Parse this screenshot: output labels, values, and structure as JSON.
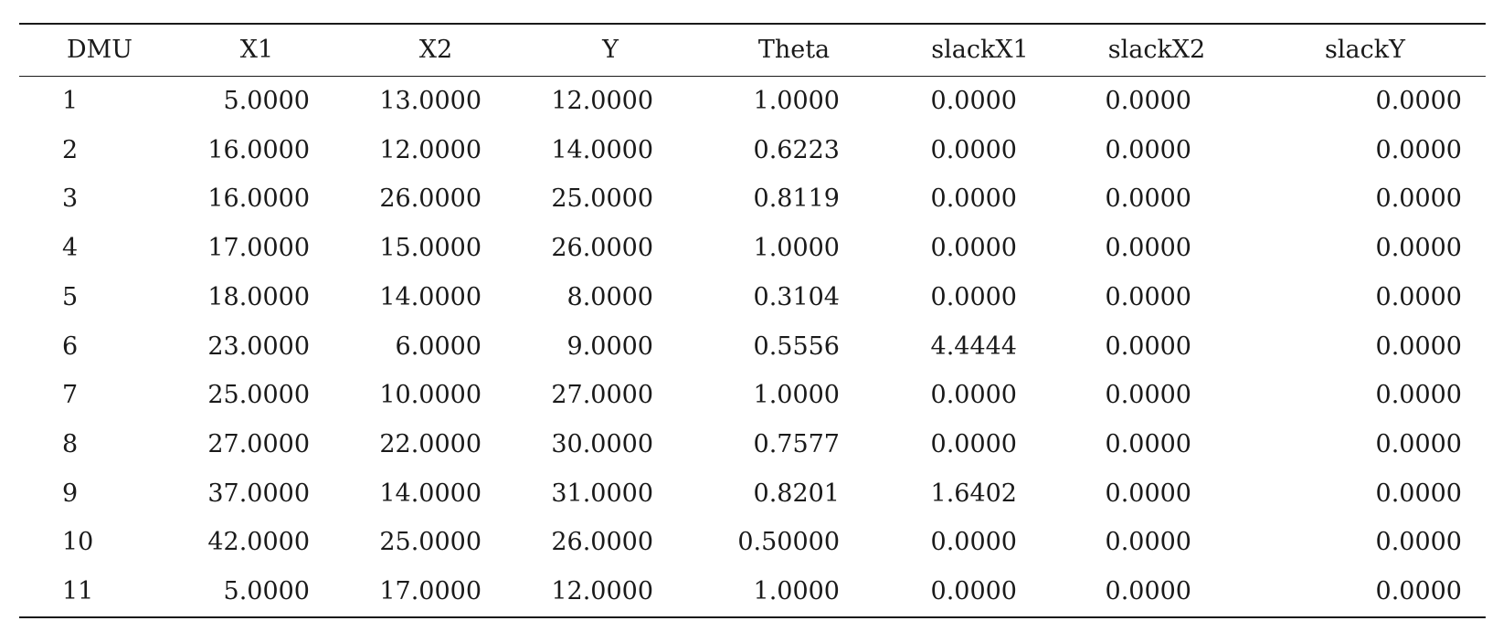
{
  "table": {
    "headers": [
      "DMU",
      "X1",
      "X2",
      "Y",
      "Theta",
      "slackX1",
      "slackX2",
      "slackY"
    ],
    "rows": [
      [
        "1",
        "5.0000",
        "13.0000",
        "12.0000",
        "1.0000",
        "0.0000",
        "0.0000",
        "0.0000"
      ],
      [
        "2",
        "16.0000",
        "12.0000",
        "14.0000",
        "0.6223",
        "0.0000",
        "0.0000",
        "0.0000"
      ],
      [
        "3",
        "16.0000",
        "26.0000",
        "25.0000",
        "0.8119",
        "0.0000",
        "0.0000",
        "0.0000"
      ],
      [
        "4",
        "17.0000",
        "15.0000",
        "26.0000",
        "1.0000",
        "0.0000",
        "0.0000",
        "0.0000"
      ],
      [
        "5",
        "18.0000",
        "14.0000",
        "8.0000",
        "0.3104",
        "0.0000",
        "0.0000",
        "0.0000"
      ],
      [
        "6",
        "23.0000",
        "6.0000",
        "9.0000",
        "0.5556",
        "4.4444",
        "0.0000",
        "0.0000"
      ],
      [
        "7",
        "25.0000",
        "10.0000",
        "27.0000",
        "1.0000",
        "0.0000",
        "0.0000",
        "0.0000"
      ],
      [
        "8",
        "27.0000",
        "22.0000",
        "30.0000",
        "0.7577",
        "0.0000",
        "0.0000",
        "0.0000"
      ],
      [
        "9",
        "37.0000",
        "14.0000",
        "31.0000",
        "0.8201",
        "1.6402",
        "0.0000",
        "0.0000"
      ],
      [
        "10",
        "42.0000",
        "25.0000",
        "26.0000",
        "0.50000",
        "0.0000",
        "0.0000",
        "0.0000"
      ],
      [
        "11",
        "5.0000",
        "17.0000",
        "12.0000",
        "1.0000",
        "0.0000",
        "0.0000",
        "0.0000"
      ]
    ]
  }
}
